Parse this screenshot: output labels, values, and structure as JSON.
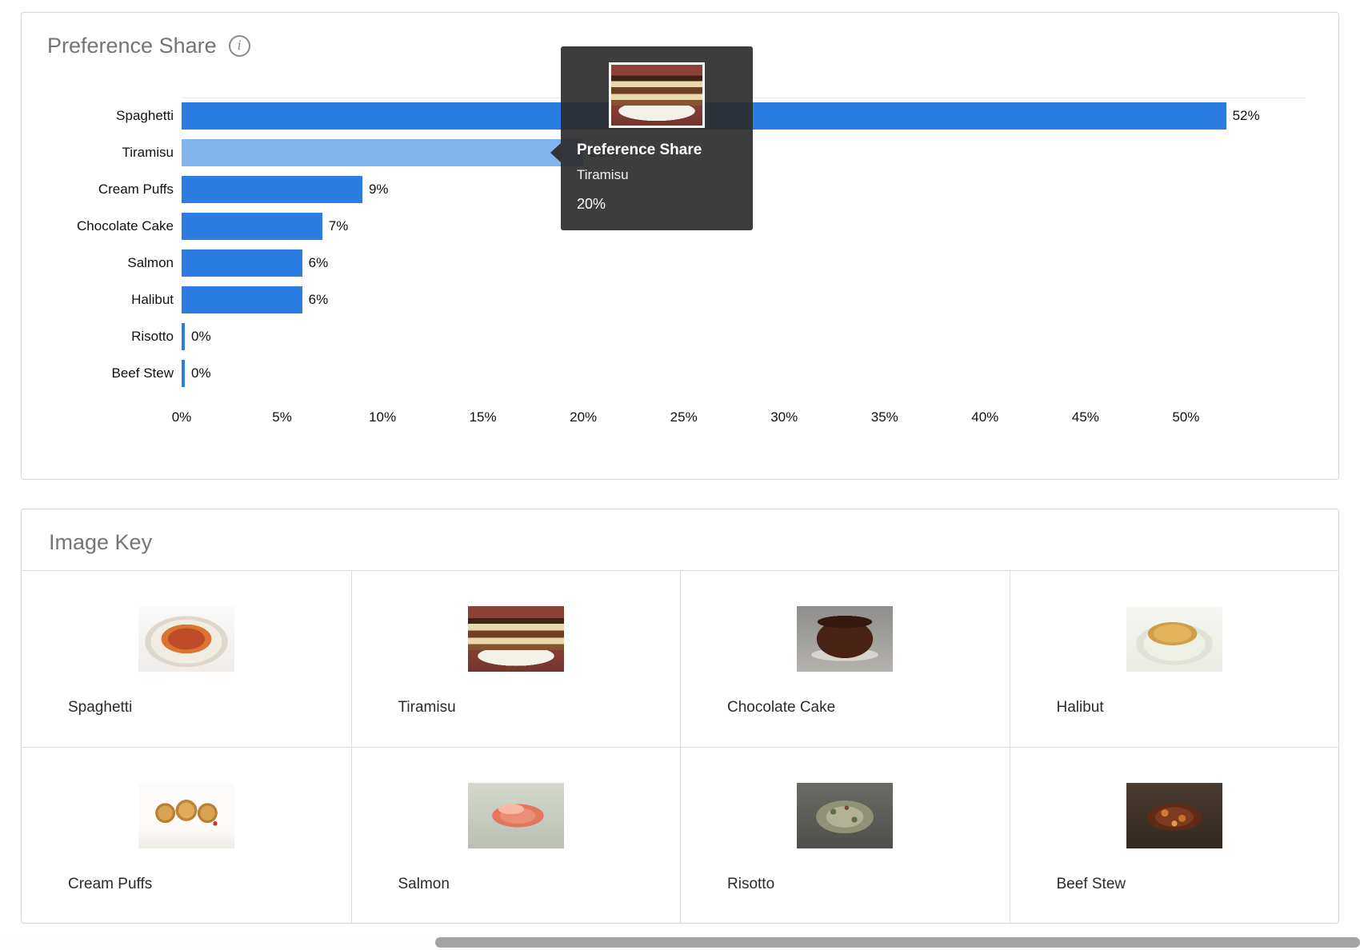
{
  "colors": {
    "bar": "#2b7de2",
    "bar_highlight": "#82b4ec",
    "tooltip_bg": "rgba(45,45,45,0.92)",
    "panel_title": "#757575"
  },
  "preference_share": {
    "title": "Preference Share"
  },
  "chart_data": {
    "type": "bar",
    "orientation": "horizontal",
    "title": "Preference Share",
    "categories": [
      "Spaghetti",
      "Tiramisu",
      "Cream Puffs",
      "Chocolate Cake",
      "Salmon",
      "Halibut",
      "Risotto",
      "Beef Stew"
    ],
    "values": [
      52,
      20,
      9,
      7,
      6,
      6,
      0,
      0
    ],
    "value_labels": [
      "52%",
      "20%",
      "9%",
      "7%",
      "6%",
      "6%",
      "0%",
      "0%"
    ],
    "x_ticks": [
      "0%",
      "5%",
      "10%",
      "15%",
      "20%",
      "25%",
      "30%",
      "35%",
      "40%",
      "45%",
      "50%"
    ],
    "x_tick_values": [
      0,
      5,
      10,
      15,
      20,
      25,
      30,
      35,
      40,
      45,
      50
    ],
    "xlim": [
      0,
      56
    ],
    "grid": false,
    "legend": false,
    "highlighted_category": "Tiramisu"
  },
  "tooltip": {
    "title": "Preference Share",
    "category": "Tiramisu",
    "value": "20%",
    "image": "tiramisu"
  },
  "image_key": {
    "title": "Image Key",
    "items": [
      {
        "label": "Spaghetti",
        "image": "spaghetti"
      },
      {
        "label": "Tiramisu",
        "image": "tiramisu"
      },
      {
        "label": "Chocolate Cake",
        "image": "chocolate-cake"
      },
      {
        "label": "Halibut",
        "image": "halibut"
      },
      {
        "label": "Cream Puffs",
        "image": "cream-puffs"
      },
      {
        "label": "Salmon",
        "image": "salmon"
      },
      {
        "label": "Risotto",
        "image": "risotto"
      },
      {
        "label": "Beef Stew",
        "image": "beef-stew"
      }
    ]
  }
}
